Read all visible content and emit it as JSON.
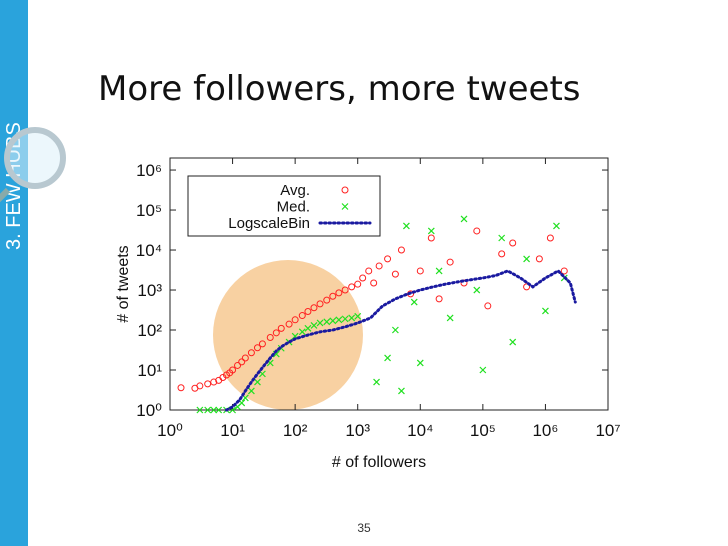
{
  "slide_title": "More followers, more tweets",
  "sidebar_label": "3. FEW HUBS",
  "page_number": "35",
  "chart_data": {
    "type": "scatter",
    "xlabel": "# of followers",
    "ylabel": "# of tweets",
    "log_x": true,
    "log_y": true,
    "grid": false,
    "legend": "upper left",
    "xlim": [
      1,
      10000000
    ],
    "ylim": [
      1,
      2000000
    ],
    "xticks": [
      {
        "value": 1,
        "label": "10⁰"
      },
      {
        "value": 10,
        "label": "10¹"
      },
      {
        "value": 100,
        "label": "10²"
      },
      {
        "value": 1000,
        "label": "10³"
      },
      {
        "value": 10000,
        "label": "10⁴"
      },
      {
        "value": 100000,
        "label": "10⁵"
      },
      {
        "value": 1000000,
        "label": "10⁶"
      },
      {
        "value": 10000000,
        "label": "10⁷"
      }
    ],
    "yticks": [
      {
        "value": 1,
        "label": "10⁰"
      },
      {
        "value": 10,
        "label": "10¹"
      },
      {
        "value": 100,
        "label": "10²"
      },
      {
        "value": 1000,
        "label": "10³"
      },
      {
        "value": 10000,
        "label": "10⁴"
      },
      {
        "value": 100000,
        "label": "10⁵"
      },
      {
        "value": 1000000,
        "label": "10⁶"
      }
    ],
    "series": [
      {
        "name": "Avg.",
        "color": "#ff2020",
        "marker": "circle",
        "x": [
          1.5,
          2.5,
          3,
          4,
          5,
          6,
          7,
          8,
          9,
          10,
          12,
          14,
          16,
          20,
          25,
          30,
          40,
          50,
          60,
          80,
          100,
          130,
          160,
          200,
          250,
          320,
          400,
          500,
          630,
          800,
          1000,
          1200,
          1500,
          1800,
          2200,
          3000,
          4000,
          5000,
          7000,
          10000,
          15000,
          20000,
          30000,
          50000,
          80000,
          120000,
          200000,
          300000,
          500000,
          800000,
          1200000,
          2000000
        ],
        "values": [
          3.6,
          3.5,
          4,
          4.5,
          5,
          5.5,
          6.5,
          7.5,
          8.5,
          10,
          13,
          16,
          20,
          27,
          36,
          45,
          65,
          85,
          110,
          140,
          180,
          230,
          290,
          360,
          450,
          560,
          700,
          850,
          1000,
          1200,
          1400,
          2000,
          3000,
          1500,
          4000,
          6000,
          2500,
          10000,
          800,
          3000,
          20000,
          600,
          5000,
          1500,
          30000,
          400,
          8000,
          15000,
          1200,
          6000,
          20000,
          3000
        ]
      },
      {
        "name": "Med.",
        "color": "#20e020",
        "marker": "x",
        "x": [
          3,
          4,
          5,
          6,
          8,
          10,
          12,
          14,
          16,
          20,
          25,
          30,
          40,
          50,
          60,
          80,
          100,
          130,
          160,
          200,
          250,
          320,
          400,
          500,
          630,
          800,
          1000,
          2000,
          3000,
          4000,
          5000,
          6000,
          8000,
          10000,
          15000,
          20000,
          30000,
          50000,
          80000,
          100000,
          200000,
          300000,
          500000,
          1000000,
          1500000,
          2000000
        ],
        "values": [
          1,
          1,
          1,
          1,
          1,
          1,
          1.2,
          1.5,
          2,
          3,
          5,
          8,
          15,
          25,
          35,
          50,
          70,
          90,
          110,
          130,
          150,
          160,
          170,
          180,
          190,
          200,
          220,
          5,
          20,
          100,
          3,
          40000,
          500,
          15,
          30000,
          3000,
          200,
          60000,
          1000,
          10,
          20000,
          50,
          6000,
          300,
          40000,
          2000
        ]
      },
      {
        "name": "LogscaleBin",
        "color": "#1a1aa0",
        "marker": "dotted-line",
        "x": [
          8,
          10,
          13,
          16,
          20,
          25,
          32,
          40,
          50,
          63,
          80,
          100,
          160,
          250,
          400,
          630,
          1000,
          1600,
          2500,
          4000,
          6300,
          10000,
          16000,
          25000,
          40000,
          63000,
          100000,
          160000,
          250000,
          400000,
          630000,
          1000000,
          1600000,
          2500000,
          3000000
        ],
        "values": [
          1,
          1.2,
          1.8,
          3,
          5,
          8,
          13,
          20,
          30,
          40,
          50,
          60,
          75,
          90,
          100,
          120,
          150,
          200,
          400,
          600,
          800,
          1000,
          1200,
          1400,
          1600,
          1800,
          2000,
          2300,
          3000,
          2000,
          1200,
          2000,
          3000,
          1500,
          500
        ]
      }
    ]
  }
}
